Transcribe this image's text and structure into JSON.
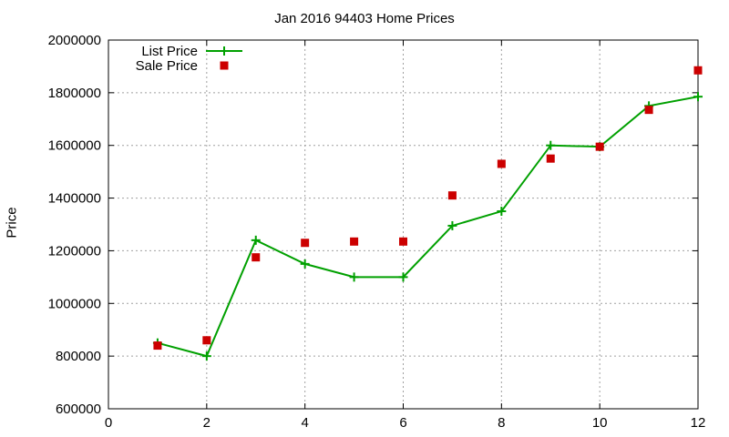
{
  "chart_data": {
    "type": "line",
    "title": "Jan 2016 94403 Home Prices",
    "xlabel": "",
    "ylabel": "Price",
    "xlim": [
      0,
      12
    ],
    "ylim": [
      600000,
      2000000
    ],
    "x_ticks": [
      0,
      2,
      4,
      6,
      8,
      10,
      12
    ],
    "y_ticks": [
      600000,
      800000,
      1000000,
      1200000,
      1400000,
      1600000,
      1800000,
      2000000
    ],
    "grid": true,
    "legend_position": "top-left",
    "x": [
      1,
      2,
      3,
      4,
      5,
      6,
      7,
      8,
      9,
      10,
      11,
      12
    ],
    "series": [
      {
        "name": "List Price",
        "style": "linespoints",
        "color": "#00a000",
        "marker": "plus",
        "values": [
          850000,
          800000,
          1240000,
          1150000,
          1100000,
          1100000,
          1295000,
          1350000,
          1600000,
          1595000,
          1750000,
          1785000
        ]
      },
      {
        "name": "Sale Price",
        "style": "points",
        "color": "#cc0000",
        "marker": "square",
        "values": [
          840000,
          860000,
          1175000,
          1230000,
          1235000,
          1235000,
          1410000,
          1530000,
          1550000,
          1595000,
          1735000,
          1885000
        ]
      }
    ]
  }
}
